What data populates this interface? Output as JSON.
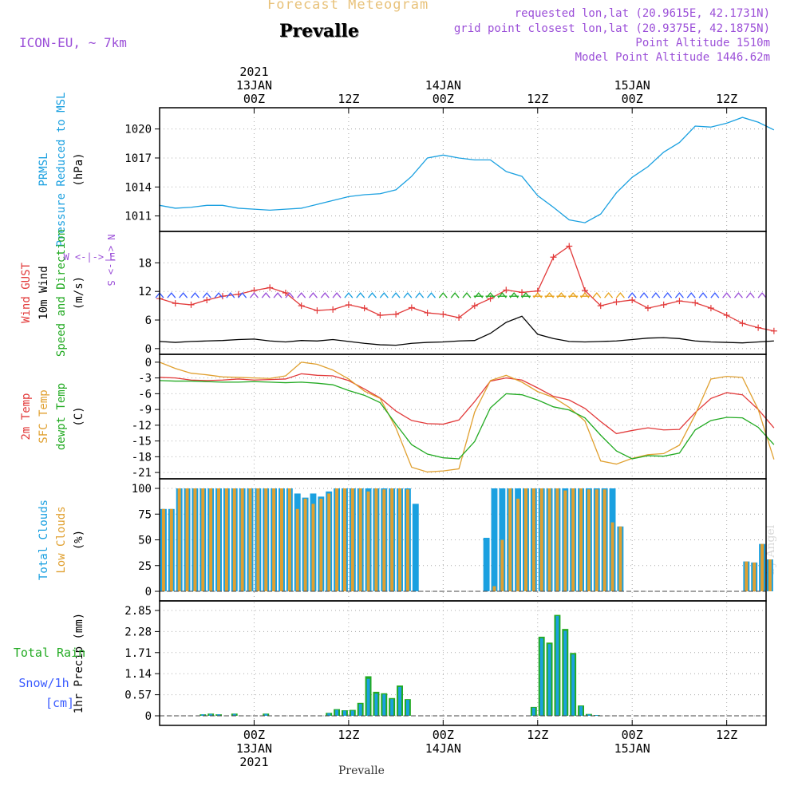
{
  "header": {
    "title": "Forecast Meteogram",
    "location": "Prevalle",
    "model": "ICON-EU, ~ 7km",
    "requested": "requested lon,lat (20.9615E, 42.1731N)",
    "grid": "grid point closest lon,lat (20.9375E, 42.1875N)",
    "altitude": "Point Altitude 1510m",
    "model_altitude": "Model Point Altitude 1446.62m",
    "footer": "Prevalle",
    "watermark": "by Angel",
    "colors": {
      "title": "#e8c27a",
      "location": "#000000",
      "purple": "#9b4fd8"
    }
  },
  "chart_data": [
    {
      "type": "line",
      "panel": "pressure",
      "ylabels": [
        {
          "text": "PRMSL",
          "color": "#1aa0e0"
        },
        {
          "text": "Pressure Reduced to MSL",
          "color": "#1aa0e0"
        },
        {
          "text": "(hPa)",
          "color": "#000000"
        }
      ],
      "yticks": [
        "1011",
        "1014",
        "1017",
        "1020"
      ],
      "ylim": [
        1009.4,
        1022.2
      ],
      "series": [
        {
          "color": "#1aa0e0",
          "x": [
            0,
            2,
            4,
            6,
            8,
            10,
            12,
            14,
            16,
            18,
            20,
            22,
            24,
            26,
            28,
            30,
            32,
            34,
            36,
            38,
            40,
            42,
            44,
            46,
            48,
            50,
            52,
            54,
            56,
            58,
            60,
            62,
            64,
            66,
            68,
            70,
            72,
            74,
            76,
            78
          ],
          "values": [
            1012.1,
            1011.8,
            1011.9,
            1012.1,
            1012.1,
            1011.8,
            1011.7,
            1011.6,
            1011.7,
            1011.8,
            1012.2,
            1012.6,
            1013,
            1013.2,
            1013.3,
            1013.7,
            1015.1,
            1017,
            1017.3,
            1017,
            1016.8,
            1016.8,
            1015.6,
            1015.1,
            1013.1,
            1011.9,
            1010.6,
            1010.3,
            1011.2,
            1013.4,
            1015,
            1016.1,
            1017.6,
            1018.6,
            1020.3,
            1020.2,
            1020.6,
            1021.2,
            1020.7,
            1019.9
          ]
        }
      ]
    },
    {
      "type": "line",
      "panel": "wind",
      "ylabels": [
        {
          "text": "Wind GUST",
          "color": "#e23a3a"
        },
        {
          "text": "10m Wind",
          "color": "#000000"
        },
        {
          "text": "Speed and Direction",
          "color": "#22aa22"
        },
        {
          "text": "(m/s)",
          "color": "#000000"
        }
      ],
      "compass": {
        "n": "N",
        "s": "S",
        "w": "W",
        "e": "E",
        "color": "#9b4fd8"
      },
      "yticks": [
        "0",
        "6",
        "12",
        "18"
      ],
      "ylim": [
        -1.2,
        24.6
      ],
      "series": [
        {
          "role": "gust",
          "color": "#e23a3a",
          "x": [
            0,
            2,
            4,
            6,
            8,
            10,
            12,
            14,
            16,
            18,
            20,
            22,
            24,
            26,
            28,
            30,
            32,
            34,
            36,
            38,
            40,
            42,
            44,
            46,
            48,
            50,
            52,
            54,
            56,
            58,
            60,
            62,
            64,
            66,
            68,
            70,
            72,
            74,
            76,
            78
          ],
          "values": [
            10.5,
            9.5,
            9.2,
            10.2,
            11,
            11.4,
            12.2,
            12.8,
            11.7,
            9,
            8,
            8.2,
            9.2,
            8.5,
            7,
            7.2,
            8.6,
            7.5,
            7.2,
            6.5,
            9,
            10.5,
            12.3,
            11.8,
            12.1,
            19.2,
            21.5,
            12.2,
            9,
            9.8,
            10.2,
            8.5,
            9.2,
            10,
            9.6,
            8.5,
            7,
            5.3,
            4.4,
            3.7
          ]
        },
        {
          "role": "wind",
          "color": "#000000",
          "x": [
            0,
            2,
            4,
            6,
            8,
            10,
            12,
            14,
            16,
            18,
            20,
            22,
            24,
            26,
            28,
            30,
            32,
            34,
            36,
            38,
            40,
            42,
            44,
            46,
            48,
            50,
            52,
            54,
            56,
            58,
            60,
            62,
            64,
            66,
            68,
            70,
            72,
            74,
            76,
            78
          ],
          "values": [
            1.5,
            1.3,
            1.5,
            1.6,
            1.7,
            1.9,
            2,
            1.6,
            1.4,
            1.7,
            1.6,
            1.9,
            1.5,
            1.1,
            0.8,
            0.7,
            1.1,
            1.3,
            1.4,
            1.6,
            1.7,
            3.2,
            5.5,
            6.8,
            3,
            2.1,
            1.5,
            1.4,
            1.5,
            1.6,
            1.9,
            2.2,
            2.3,
            2.1,
            1.6,
            1.4,
            1.3,
            1.2,
            1.4,
            1.6
          ]
        }
      ],
      "direction_colors": [
        "#3a5bff",
        "#9b4fd8",
        "#1aa0e0",
        "#22aa22",
        "#e8a21a"
      ]
    },
    {
      "type": "line",
      "panel": "temperature",
      "ylabels": [
        {
          "text": "2m Temp",
          "color": "#e23a3a"
        },
        {
          "text": "SFC Temp",
          "color": "#e0a030"
        },
        {
          "text": "dewpt Temp",
          "color": "#22aa22"
        },
        {
          "text": "(C)",
          "color": "#000000"
        }
      ],
      "yticks": [
        "0",
        "-3",
        "-6",
        "-9",
        "-12",
        "-15",
        "-18",
        "-21"
      ],
      "ylim": [
        -22.2,
        1.5
      ],
      "series": [
        {
          "role": "t2m",
          "color": "#e23a3a",
          "x": [
            0,
            2,
            4,
            6,
            8,
            10,
            12,
            14,
            16,
            18,
            20,
            22,
            24,
            26,
            28,
            30,
            32,
            34,
            36,
            38,
            40,
            42,
            44,
            46,
            48,
            50,
            52,
            54,
            56,
            58,
            60,
            62,
            64,
            66,
            68,
            70,
            72,
            74,
            76,
            78
          ],
          "values": [
            -2.9,
            -3,
            -3.4,
            -3.5,
            -3.4,
            -3.2,
            -3.4,
            -3.3,
            -3.2,
            -2.2,
            -2.5,
            -2.6,
            -3.5,
            -5.1,
            -6.8,
            -9.3,
            -11.1,
            -11.7,
            -11.8,
            -11,
            -7.5,
            -3.6,
            -3,
            -3.4,
            -4.9,
            -6.5,
            -7.2,
            -8.8,
            -11.3,
            -13.6,
            -13,
            -12.5,
            -12.9,
            -12.8,
            -9.6,
            -6.9,
            -5.8,
            -6.2,
            -9,
            -12.5
          ]
        },
        {
          "role": "sfc",
          "color": "#e0a030",
          "x": [
            0,
            2,
            4,
            6,
            8,
            10,
            12,
            14,
            16,
            18,
            20,
            22,
            24,
            26,
            28,
            30,
            32,
            34,
            36,
            38,
            40,
            42,
            44,
            46,
            48,
            50,
            52,
            54,
            56,
            58,
            60,
            62,
            64,
            66,
            68,
            70,
            72,
            74,
            76,
            78
          ],
          "values": [
            0,
            -1.2,
            -2.1,
            -2.4,
            -2.8,
            -2.9,
            -3,
            -3.1,
            -2.6,
            0,
            -0.4,
            -1.5,
            -3.2,
            -5.5,
            -6.9,
            -12.5,
            -20,
            -20.9,
            -20.7,
            -20.3,
            -9.5,
            -3.5,
            -2.5,
            -3.8,
            -5.6,
            -6.7,
            -8.6,
            -11.2,
            -18.8,
            -19.4,
            -18.3,
            -17.6,
            -17.4,
            -15.8,
            -10,
            -3.2,
            -2.7,
            -2.9,
            -9,
            -18.5
          ]
        },
        {
          "role": "dewpt",
          "color": "#22aa22",
          "x": [
            0,
            2,
            4,
            6,
            8,
            10,
            12,
            14,
            16,
            18,
            20,
            22,
            24,
            26,
            28,
            30,
            32,
            34,
            36,
            38,
            40,
            42,
            44,
            46,
            48,
            50,
            52,
            54,
            56,
            58,
            60,
            62,
            64,
            66,
            68,
            70,
            72,
            74,
            76,
            78
          ],
          "values": [
            -3.5,
            -3.6,
            -3.6,
            -3.7,
            -3.8,
            -3.8,
            -3.7,
            -3.8,
            -3.9,
            -3.8,
            -4,
            -4.3,
            -5.4,
            -6.3,
            -7.7,
            -11.8,
            -15.7,
            -17.5,
            -18.2,
            -18.4,
            -15.1,
            -8.7,
            -6,
            -6.2,
            -7.2,
            -8.5,
            -9.1,
            -10.6,
            -13.9,
            -16.9,
            -18.4,
            -17.8,
            -17.9,
            -17.3,
            -12.9,
            -11.1,
            -10.5,
            -10.6,
            -12.4,
            -15.7
          ]
        }
      ]
    },
    {
      "type": "bar",
      "panel": "clouds",
      "ylabels": [
        {
          "text": "Total Clouds",
          "color": "#1aa0e0"
        },
        {
          "text": "Low Clouds",
          "color": "#e0a030"
        },
        {
          "text": "(%)",
          "color": "#000000"
        }
      ],
      "yticks": [
        "0",
        "25",
        "50",
        "75",
        "100"
      ],
      "ylim": [
        0,
        100
      ],
      "x": [
        1,
        2,
        3,
        4,
        5,
        6,
        7,
        8,
        9,
        10,
        11,
        12,
        13,
        14,
        15,
        16,
        17,
        18,
        19,
        20,
        21,
        22,
        23,
        24,
        25,
        26,
        27,
        28,
        29,
        30,
        31,
        32,
        33,
        34,
        35,
        36,
        37,
        38,
        39,
        40,
        41,
        42,
        43,
        44,
        45,
        46,
        47,
        48,
        49,
        50,
        51,
        52,
        53,
        54,
        55,
        56,
        57,
        58,
        59,
        60,
        61,
        62,
        63,
        64,
        65,
        66,
        67,
        68,
        69,
        70,
        71,
        72,
        73,
        74,
        75,
        76,
        77,
        78
      ],
      "series": [
        {
          "role": "total",
          "color": "#1aa0e0",
          "values": [
            80,
            80,
            100,
            100,
            100,
            100,
            100,
            100,
            100,
            100,
            100,
            100,
            100,
            100,
            100,
            100,
            100,
            95,
            91,
            95,
            92,
            97,
            100,
            100,
            100,
            100,
            100,
            100,
            100,
            100,
            100,
            100,
            85,
            0,
            0,
            0,
            0,
            0,
            0,
            0,
            0,
            52,
            100,
            100,
            100,
            100,
            100,
            100,
            100,
            100,
            100,
            100,
            100,
            100,
            100,
            100,
            100,
            100,
            63,
            0,
            0,
            0,
            0,
            0,
            0,
            0,
            0,
            0,
            0,
            0,
            0,
            0,
            0,
            0,
            29,
            28,
            46,
            31
          ]
        },
        {
          "role": "low",
          "color": "#e0a030",
          "values": [
            80,
            80,
            100,
            100,
            100,
            100,
            100,
            100,
            100,
            100,
            100,
            100,
            100,
            100,
            100,
            100,
            100,
            80,
            90,
            85,
            90,
            95,
            100,
            100,
            100,
            100,
            97,
            100,
            99,
            100,
            100,
            99,
            0,
            0,
            0,
            0,
            0,
            0,
            0,
            0,
            0,
            0,
            5,
            50,
            100,
            90,
            100,
            100,
            100,
            100,
            100,
            98,
            100,
            100,
            99,
            99,
            99,
            67,
            63,
            0,
            0,
            0,
            0,
            0,
            0,
            0,
            0,
            0,
            0,
            0,
            0,
            0,
            0,
            0,
            29,
            28,
            46,
            31
          ]
        }
      ]
    },
    {
      "type": "bar",
      "panel": "precip",
      "ylabels": [
        {
          "text": "1hr Precip (mm)",
          "color": "#000000"
        }
      ],
      "side_labels": [
        {
          "text": "Total  Rain",
          "color": "#22aa22"
        },
        {
          "text": "Snow/1h",
          "color": "#3a5bff"
        },
        {
          "text": "[cm]",
          "color": "#3a5bff"
        }
      ],
      "yticks": [
        "0",
        "0.57",
        "1.14",
        "1.71",
        "2.28",
        "2.85"
      ],
      "ylim": [
        0,
        2.85
      ],
      "x": [
        6,
        7,
        8,
        10,
        14,
        22,
        23,
        24,
        25,
        26,
        27,
        28,
        29,
        30,
        31,
        32,
        48,
        49,
        50,
        51,
        52,
        53,
        54,
        55,
        56
      ],
      "series": [
        {
          "role": "rain",
          "color": "#22aa22",
          "values": [
            0.04,
            0.06,
            0.04,
            0.06,
            0.06,
            0.08,
            0.18,
            0.15,
            0.16,
            0.35,
            1.07,
            0.65,
            0.61,
            0.48,
            0.82,
            0.45,
            0.24,
            2.14,
            1.98,
            2.73,
            2.35,
            1.7,
            0.28,
            0.05,
            0.02
          ]
        },
        {
          "role": "snow",
          "color": "#1aa0e0",
          "values": [
            0.04,
            0.05,
            0.04,
            0.05,
            0.05,
            0.07,
            0.16,
            0.14,
            0.14,
            0.32,
            1,
            0.6,
            0.58,
            0.45,
            0.78,
            0.43,
            0.22,
            2.1,
            1.94,
            2.7,
            2.3,
            1.66,
            0.26,
            0.04,
            0.02
          ]
        }
      ]
    }
  ],
  "axes": {
    "top_ticks": [
      {
        "x": 12,
        "lines": [
          "2021",
          "13JAN",
          "00Z"
        ]
      },
      {
        "x": 24,
        "lines": [
          "12Z"
        ]
      },
      {
        "x": 36,
        "lines": [
          "14JAN",
          "00Z"
        ]
      },
      {
        "x": 48,
        "lines": [
          "12Z"
        ]
      },
      {
        "x": 60,
        "lines": [
          "15JAN",
          "00Z"
        ]
      },
      {
        "x": 72,
        "lines": [
          "12Z"
        ]
      }
    ],
    "bottom_ticks": [
      {
        "x": 12,
        "lines": [
          "00Z",
          "13JAN",
          "2021"
        ]
      },
      {
        "x": 24,
        "lines": [
          "12Z"
        ]
      },
      {
        "x": 36,
        "lines": [
          "00Z",
          "14JAN"
        ]
      },
      {
        "x": 48,
        "lines": [
          "12Z"
        ]
      },
      {
        "x": 60,
        "lines": [
          "00Z",
          "15JAN"
        ]
      },
      {
        "x": 72,
        "lines": [
          "12Z"
        ]
      }
    ],
    "xlim": [
      0,
      77
    ]
  }
}
